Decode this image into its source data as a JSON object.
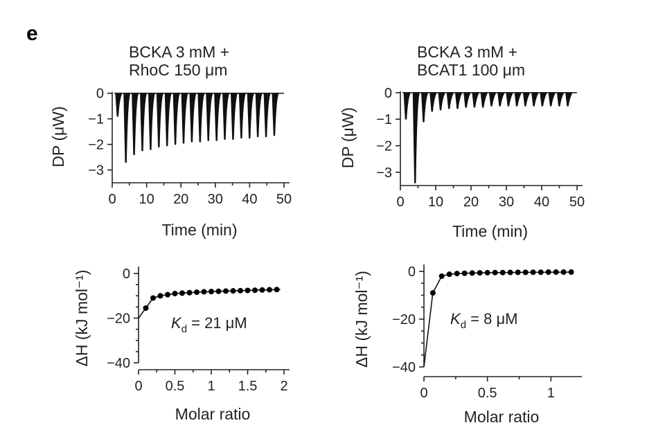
{
  "panel_label": "e",
  "chart_data": [
    {
      "id": "itc-raw-rhoc",
      "type": "line",
      "title_lines": [
        "BCKA 3 mM +",
        "RhoC 150 μm"
      ],
      "xlabel": "Time (min)",
      "ylabel": "DP (μW)",
      "xlim": [
        0,
        50
      ],
      "ylim": [
        -3.5,
        0.1
      ],
      "xticks": [
        "0",
        "10",
        "20",
        "30",
        "40",
        "50"
      ],
      "yticks": [
        "0",
        "−1",
        "−2",
        "−3"
      ],
      "injection_times": [
        1.2,
        3.6,
        6.0,
        8.4,
        10.8,
        13.2,
        15.6,
        18.0,
        20.4,
        22.8,
        25.2,
        27.6,
        30.0,
        32.4,
        34.8,
        37.2,
        39.6,
        42.0,
        44.4,
        46.8
      ],
      "peak_dp": [
        -0.9,
        -2.7,
        -2.4,
        -2.25,
        -2.2,
        -2.1,
        -2.05,
        -2.0,
        -1.95,
        -1.9,
        -1.9,
        -1.85,
        -1.85,
        -1.8,
        -1.8,
        -1.75,
        -1.75,
        -1.7,
        -1.7,
        -1.65
      ]
    },
    {
      "id": "itc-raw-bcat1",
      "type": "line",
      "title_lines": [
        "BCKA 3 mM +",
        "BCAT1 100 μm"
      ],
      "xlabel": "Time (min)",
      "ylabel": "DP (μW)",
      "xlim": [
        0,
        50
      ],
      "ylim": [
        -3.5,
        0.1
      ],
      "xticks": [
        "0",
        "10",
        "20",
        "30",
        "40",
        "50"
      ],
      "yticks": [
        "0",
        "−1",
        "−2",
        "−3"
      ],
      "injection_times": [
        1.2,
        3.8,
        6.2,
        8.6,
        11.0,
        13.4,
        15.8,
        18.2,
        20.6,
        23.0,
        25.4,
        27.8,
        30.2,
        32.6,
        35.0,
        37.4,
        39.8,
        42.2,
        44.6,
        47.0
      ],
      "peak_dp": [
        -1.0,
        -3.4,
        -1.1,
        -0.7,
        -0.65,
        -0.6,
        -0.6,
        -0.55,
        -0.55,
        -0.55,
        -0.5,
        -0.5,
        -0.5,
        -0.5,
        -0.5,
        -0.5,
        -0.5,
        -0.5,
        -0.5,
        -0.5
      ]
    },
    {
      "id": "itc-fit-rhoc",
      "type": "scatter",
      "xlabel": "Molar ratio",
      "ylabel": "ΔH (kJ mol⁻¹)",
      "xlim": [
        0,
        2
      ],
      "ylim": [
        -40,
        0
      ],
      "xticks": [
        "0",
        "0.5",
        "1",
        "1.5",
        "2"
      ],
      "yticks": [
        "0",
        "−20",
        "−40"
      ],
      "x": [
        0.1,
        0.2,
        0.3,
        0.4,
        0.5,
        0.6,
        0.7,
        0.8,
        0.9,
        1.0,
        1.1,
        1.2,
        1.3,
        1.4,
        1.5,
        1.6,
        1.7,
        1.8,
        1.9
      ],
      "y": [
        -15.5,
        -11,
        -10,
        -9.5,
        -9,
        -8.8,
        -8.6,
        -8.4,
        -8.2,
        -8.1,
        -8,
        -7.9,
        -7.8,
        -7.7,
        -7.6,
        -7.5,
        -7.4,
        -7.3,
        -7.2
      ],
      "fit_x": [
        0,
        0.1,
        0.2,
        0.3,
        0.5,
        0.8,
        1.2,
        1.6,
        1.95
      ],
      "fit_y": [
        -20,
        -15.5,
        -11,
        -10,
        -9,
        -8.4,
        -7.9,
        -7.5,
        -7.2
      ],
      "annotation": {
        "prefix": "K",
        "subscript": "d",
        "suffix": " = 21 μM"
      }
    },
    {
      "id": "itc-fit-bcat1",
      "type": "scatter",
      "xlabel": "Molar ratio",
      "ylabel": "ΔH (kJ mol⁻¹)",
      "xlim": [
        0,
        1.2
      ],
      "ylim": [
        -40,
        0
      ],
      "xticks": [
        "0",
        "0.5",
        "1"
      ],
      "yticks": [
        "0",
        "−20",
        "−40"
      ],
      "x": [
        0.07,
        0.14,
        0.2,
        0.26,
        0.32,
        0.38,
        0.44,
        0.5,
        0.56,
        0.62,
        0.68,
        0.74,
        0.8,
        0.86,
        0.92,
        0.98,
        1.04,
        1.1,
        1.16
      ],
      "y": [
        -9,
        -2,
        -1.2,
        -0.9,
        -0.8,
        -0.7,
        -0.6,
        -0.55,
        -0.5,
        -0.5,
        -0.45,
        -0.4,
        -0.4,
        -0.35,
        -0.35,
        -0.3,
        -0.3,
        -0.3,
        -0.3
      ],
      "fit_x": [
        0,
        0.07,
        0.14,
        0.2,
        0.3,
        0.5,
        0.8,
        1.16
      ],
      "fit_y": [
        -40,
        -9,
        -2,
        -1.2,
        -0.8,
        -0.55,
        -0.4,
        -0.3
      ],
      "annotation": {
        "prefix": "K",
        "subscript": "d",
        "suffix": " = 8 μM"
      }
    }
  ]
}
